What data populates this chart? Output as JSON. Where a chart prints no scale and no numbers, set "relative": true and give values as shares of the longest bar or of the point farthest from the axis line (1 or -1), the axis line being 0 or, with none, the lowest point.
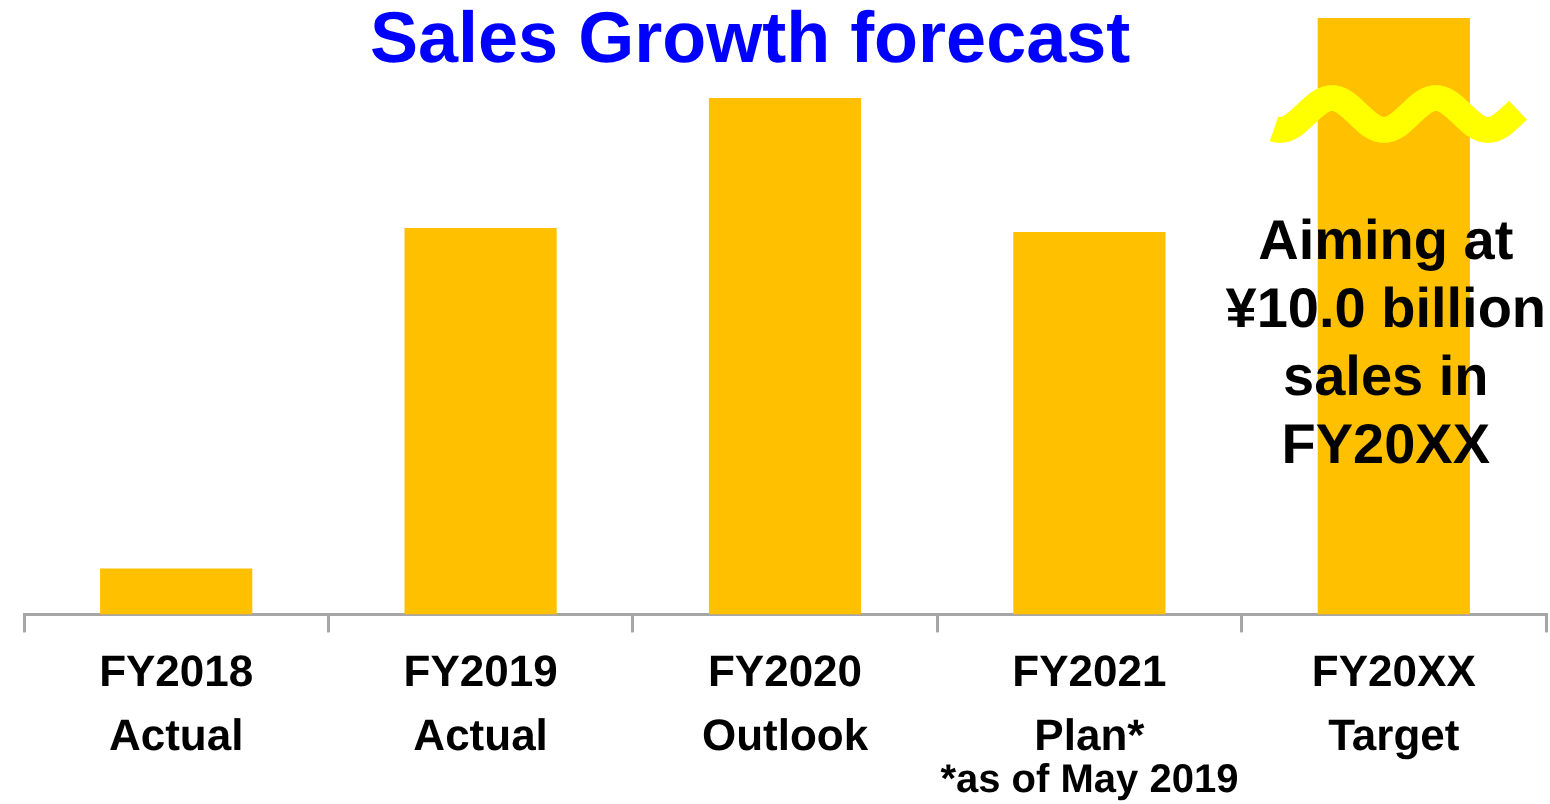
{
  "chart_data": {
    "type": "bar",
    "title": "Sales Growth forecast",
    "categories": [
      "FY2018 Actual",
      "FY2019 Actual",
      "FY2020 Outlook",
      "FY2021 Plan*",
      "FY20XX Target"
    ],
    "values": [
      0.077,
      0.648,
      0.866,
      0.641,
      1
    ],
    "color": "#ffc000",
    "relative": true,
    "annotations": [
      "Aiming at ¥10.0 billion sales in FY20XX",
      "*as of May 2019"
    ]
  }
}
